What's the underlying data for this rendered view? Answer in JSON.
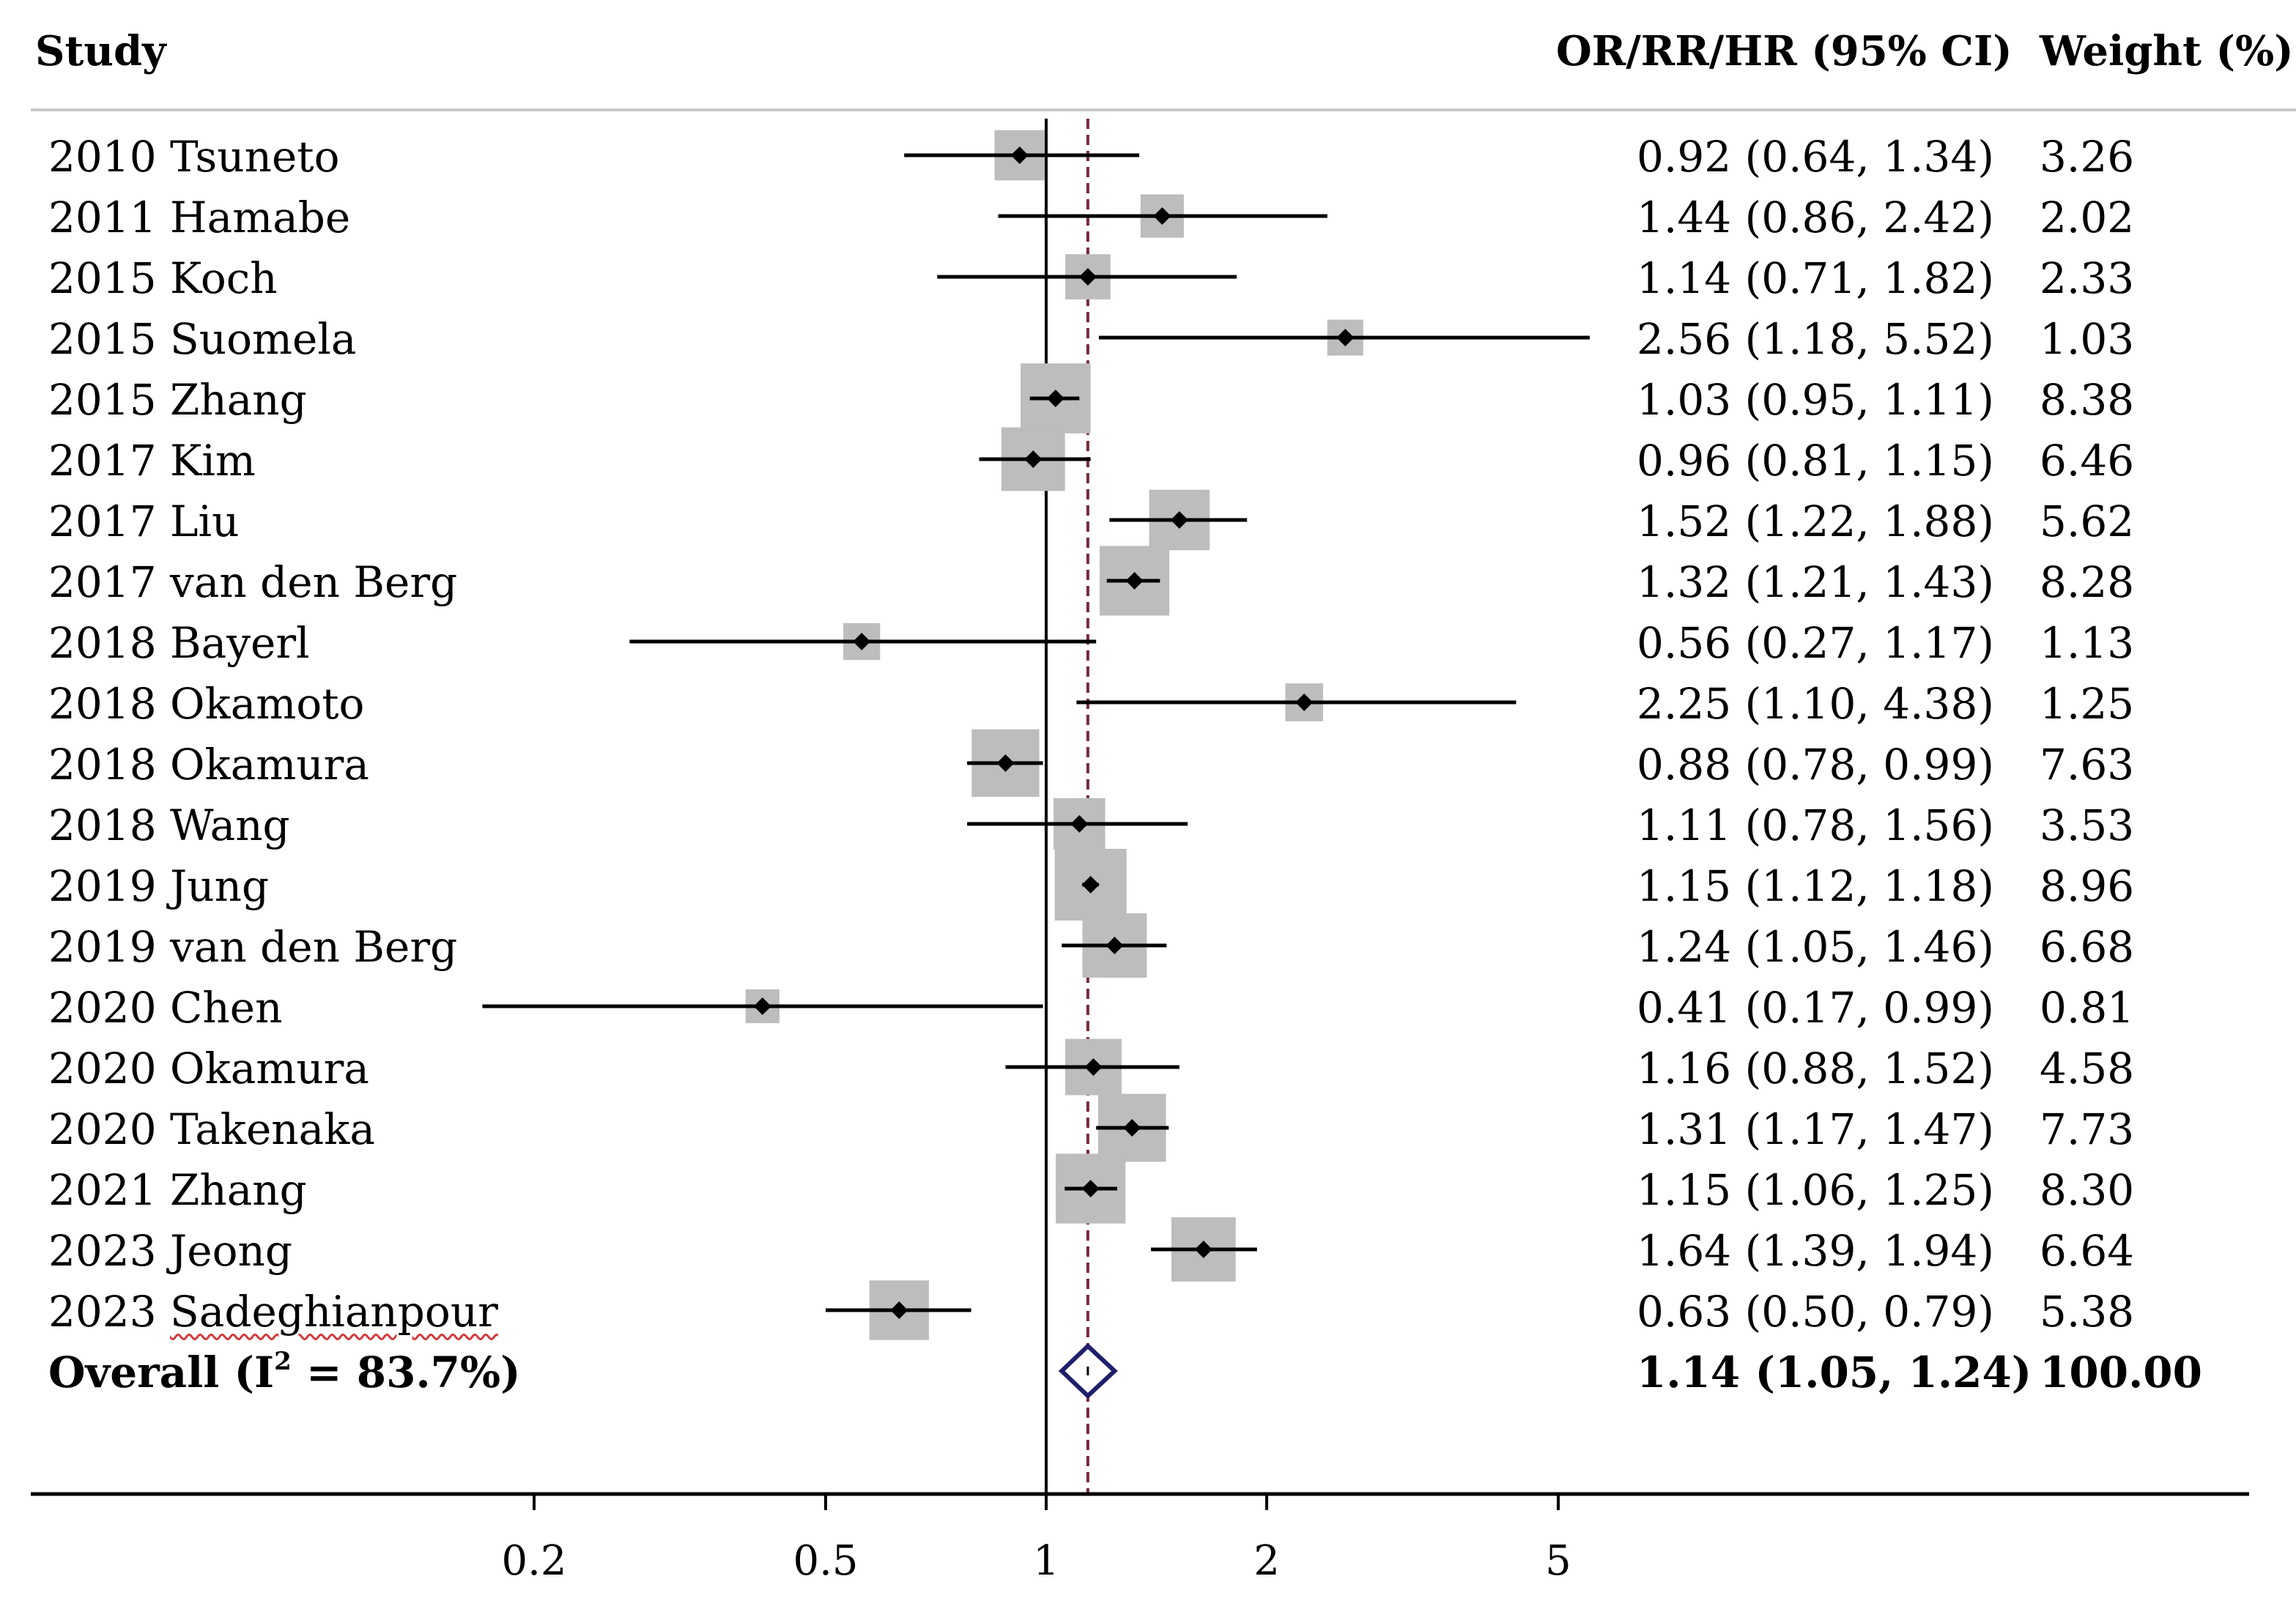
{
  "headers": {
    "study": "Study",
    "estimate": "OR/RR/HR (95% CI)",
    "weight": "Weight (%)"
  },
  "chart_data": {
    "type": "forest",
    "x_scale": "log",
    "null_value": 1,
    "pooled_estimate": 1.14,
    "xlim": [
      0.12,
      6.6
    ],
    "xticks": [
      {
        "value": 0.2,
        "label": "0.2"
      },
      {
        "value": 0.5,
        "label": "0.5"
      },
      {
        "value": 1,
        "label": "1"
      },
      {
        "value": 2,
        "label": "2"
      },
      {
        "value": 5,
        "label": "5"
      }
    ],
    "studies": [
      {
        "label": "2010 Tsuneto",
        "est": 0.92,
        "lo": 0.64,
        "hi": 1.34,
        "ci_text": "0.92 (0.64, 1.34)",
        "weight": "3.26"
      },
      {
        "label": "2011 Hamabe",
        "est": 1.44,
        "lo": 0.86,
        "hi": 2.42,
        "ci_text": "1.44 (0.86, 2.42)",
        "weight": "2.02"
      },
      {
        "label": "2015 Koch",
        "est": 1.14,
        "lo": 0.71,
        "hi": 1.82,
        "ci_text": "1.14 (0.71, 1.82)",
        "weight": "2.33"
      },
      {
        "label": "2015 Suomela",
        "est": 2.56,
        "lo": 1.18,
        "hi": 5.52,
        "ci_text": "2.56 (1.18, 5.52)",
        "weight": "1.03"
      },
      {
        "label": "2015 Zhang",
        "est": 1.03,
        "lo": 0.95,
        "hi": 1.11,
        "ci_text": "1.03 (0.95, 1.11)",
        "weight": "8.38"
      },
      {
        "label": "2017 Kim",
        "est": 0.96,
        "lo": 0.81,
        "hi": 1.15,
        "ci_text": "0.96 (0.81, 1.15)",
        "weight": "6.46"
      },
      {
        "label": "2017 Liu",
        "est": 1.52,
        "lo": 1.22,
        "hi": 1.88,
        "ci_text": "1.52 (1.22, 1.88)",
        "weight": "5.62"
      },
      {
        "label": "2017 van den Berg",
        "est": 1.32,
        "lo": 1.21,
        "hi": 1.43,
        "ci_text": "1.32 (1.21, 1.43)",
        "weight": "8.28"
      },
      {
        "label": "2018 Bayerl",
        "est": 0.56,
        "lo": 0.27,
        "hi": 1.17,
        "ci_text": "0.56 (0.27, 1.17)",
        "weight": "1.13"
      },
      {
        "label": "2018 Okamoto",
        "est": 2.25,
        "lo": 1.1,
        "hi": 4.38,
        "ci_text": "2.25 (1.10, 4.38)",
        "weight": "1.25"
      },
      {
        "label": "2018 Okamura",
        "est": 0.88,
        "lo": 0.78,
        "hi": 0.99,
        "ci_text": "0.88 (0.78, 0.99)",
        "weight": "7.63"
      },
      {
        "label": "2018 Wang",
        "est": 1.11,
        "lo": 0.78,
        "hi": 1.56,
        "ci_text": "1.11 (0.78, 1.56)",
        "weight": "3.53"
      },
      {
        "label": "2019 Jung",
        "est": 1.15,
        "lo": 1.12,
        "hi": 1.18,
        "ci_text": "1.15 (1.12, 1.18)",
        "weight": "8.96"
      },
      {
        "label": "2019 van den Berg",
        "est": 1.24,
        "lo": 1.05,
        "hi": 1.46,
        "ci_text": "1.24 (1.05, 1.46)",
        "weight": "6.68"
      },
      {
        "label": "2020 Chen",
        "est": 0.41,
        "lo": 0.17,
        "hi": 0.99,
        "ci_text": "0.41 (0.17, 0.99)",
        "weight": "0.81"
      },
      {
        "label": "2020 Okamura",
        "est": 1.16,
        "lo": 0.88,
        "hi": 1.52,
        "ci_text": "1.16 (0.88, 1.52)",
        "weight": "4.58"
      },
      {
        "label": "2020 Takenaka",
        "est": 1.31,
        "lo": 1.17,
        "hi": 1.47,
        "ci_text": "1.31 (1.17, 1.47)",
        "weight": "7.73"
      },
      {
        "label": "2021 Zhang",
        "est": 1.15,
        "lo": 1.06,
        "hi": 1.25,
        "ci_text": "1.15 (1.06, 1.25)",
        "weight": "8.30"
      },
      {
        "label": "2023 Jeong",
        "est": 1.64,
        "lo": 1.39,
        "hi": 1.94,
        "ci_text": "1.64 (1.39, 1.94)",
        "weight": "6.64"
      },
      {
        "label": "2023 Sadeghianpour",
        "est": 0.63,
        "lo": 0.5,
        "hi": 0.79,
        "ci_text": "0.63 (0.50, 0.79)",
        "weight": "5.38"
      }
    ],
    "overall": {
      "label_main": "Overall  (I",
      "label_sup": "2",
      "label_tail": " = 83.7%)",
      "est": 1.14,
      "lo": 1.05,
      "hi": 1.24,
      "ci_text": "1.14 (1.05, 1.24)",
      "weight": "100.00"
    },
    "colors": {
      "box": "#bdbdbd",
      "point": "#000000",
      "diamond": "#1f1f6b",
      "ref_line": "#7a2a3a",
      "axis": "#000000"
    }
  }
}
